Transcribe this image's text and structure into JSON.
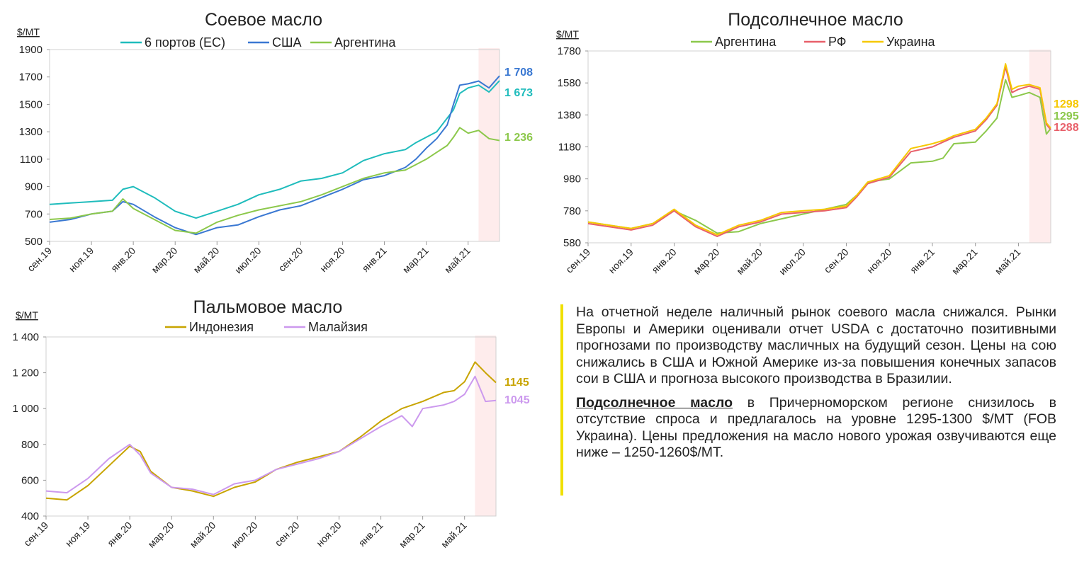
{
  "charts": [
    {
      "id": "soy",
      "type": "line",
      "title": "Соевое масло",
      "unit": "$/MT",
      "ylim": [
        500,
        1900
      ],
      "yticks": [
        500,
        700,
        900,
        1100,
        1300,
        1500,
        1700,
        1900
      ],
      "ytick_labels": [
        "500",
        "700",
        "900",
        "1100",
        "1300",
        "1500",
        "1700",
        "1900"
      ],
      "xlim": [
        0,
        21.5
      ],
      "xtick_labels": [
        "сен.19",
        "ноя.19",
        "янв.20",
        "мар.20",
        "май.20",
        "июл.20",
        "сен.20",
        "ноя.20",
        "янв.21",
        "мар.21",
        "май.21"
      ],
      "highlight_range": [
        20.5,
        21.5
      ],
      "series": [
        {
          "name": "6 портов (ЕС)",
          "color": "#1fbcbc",
          "end_label": "1 673",
          "x": [
            0,
            1,
            2,
            3,
            3.5,
            4,
            5,
            6,
            7,
            8,
            9,
            10,
            11,
            12,
            13,
            14,
            15,
            16,
            17,
            17.5,
            18,
            18.5,
            19,
            19.3,
            19.6,
            20,
            20.5,
            21,
            21.5
          ],
          "y": [
            770,
            780,
            790,
            800,
            880,
            900,
            820,
            720,
            670,
            720,
            770,
            840,
            880,
            940,
            960,
            1000,
            1090,
            1140,
            1170,
            1220,
            1260,
            1300,
            1400,
            1460,
            1580,
            1620,
            1640,
            1590,
            1673
          ]
        },
        {
          "name": "США",
          "color": "#3a78d2",
          "end_label": "1 708",
          "x": [
            0,
            1,
            2,
            3,
            3.5,
            4,
            5,
            6,
            7,
            8,
            9,
            10,
            11,
            12,
            13,
            14,
            15,
            16,
            17,
            17.5,
            18,
            18.5,
            19,
            19.3,
            19.6,
            20,
            20.5,
            21,
            21.5
          ],
          "y": [
            640,
            660,
            700,
            720,
            790,
            770,
            680,
            600,
            550,
            600,
            620,
            680,
            730,
            760,
            820,
            880,
            950,
            980,
            1040,
            1100,
            1180,
            1250,
            1350,
            1500,
            1640,
            1650,
            1670,
            1620,
            1708
          ]
        },
        {
          "name": "Аргентина",
          "color": "#8cc84b",
          "end_label": "1 236",
          "x": [
            0,
            1,
            2,
            3,
            3.5,
            4,
            5,
            6,
            7,
            8,
            9,
            10,
            11,
            12,
            13,
            14,
            15,
            16,
            17,
            17.5,
            18,
            18.5,
            19,
            19.3,
            19.6,
            20,
            20.5,
            21,
            21.5
          ],
          "y": [
            660,
            670,
            700,
            720,
            810,
            740,
            660,
            580,
            560,
            640,
            690,
            730,
            760,
            790,
            840,
            900,
            960,
            1000,
            1020,
            1060,
            1100,
            1150,
            1200,
            1260,
            1330,
            1290,
            1310,
            1250,
            1236
          ]
        }
      ]
    },
    {
      "id": "sun",
      "type": "line",
      "title": "Подсолнечное масло",
      "unit": "$/MT",
      "ylim": [
        580,
        1780
      ],
      "yticks": [
        580,
        780,
        980,
        1180,
        1380,
        1580,
        1780
      ],
      "ytick_labels": [
        "580",
        "780",
        "980",
        "1180",
        "1380",
        "1580",
        "1780"
      ],
      "xlim": [
        0,
        21.5
      ],
      "xtick_labels": [
        "сен.19",
        "ноя.19",
        "янв.20",
        "мар.20",
        "май.20",
        "июл.20",
        "сен.20",
        "ноя.20",
        "янв.21",
        "мар.21",
        "май.21"
      ],
      "highlight_range": [
        20.5,
        21.5
      ],
      "series": [
        {
          "name": "Аргентина",
          "color": "#8cc84b",
          "end_label": "1295",
          "x": [
            0,
            1,
            2,
            3,
            4,
            5,
            6,
            7,
            8,
            9,
            10,
            11,
            12,
            12.5,
            13,
            14,
            15,
            16,
            16.5,
            17,
            18,
            18.5,
            19,
            19.4,
            19.7,
            20,
            20.5,
            21,
            21.3,
            21.5
          ],
          "y": [
            710,
            690,
            670,
            700,
            780,
            720,
            640,
            650,
            700,
            730,
            760,
            790,
            820,
            880,
            960,
            980,
            1080,
            1090,
            1110,
            1200,
            1210,
            1280,
            1360,
            1600,
            1490,
            1500,
            1520,
            1490,
            1260,
            1295
          ]
        },
        {
          "name": "РФ",
          "color": "#e8606a",
          "end_label": "1288",
          "x": [
            0,
            1,
            2,
            3,
            4,
            5,
            6,
            7,
            8,
            9,
            10,
            11,
            12,
            12.5,
            13,
            14,
            15,
            16,
            16.5,
            17,
            18,
            18.5,
            19,
            19.4,
            19.7,
            20,
            20.5,
            21,
            21.3,
            21.5
          ],
          "y": [
            700,
            680,
            660,
            690,
            780,
            680,
            620,
            680,
            710,
            760,
            770,
            780,
            800,
            870,
            950,
            990,
            1150,
            1180,
            1210,
            1240,
            1280,
            1350,
            1440,
            1680,
            1520,
            1540,
            1560,
            1540,
            1320,
            1288
          ]
        },
        {
          "name": "Украина",
          "color": "#f6c800",
          "end_label": "1298",
          "x": [
            0,
            1,
            2,
            3,
            4,
            5,
            6,
            7,
            8,
            9,
            10,
            11,
            12,
            12.5,
            13,
            14,
            15,
            16,
            16.5,
            17,
            18,
            18.5,
            19,
            19.4,
            19.7,
            20,
            20.5,
            21,
            21.3,
            21.5
          ],
          "y": [
            710,
            690,
            670,
            700,
            790,
            690,
            630,
            690,
            720,
            770,
            780,
            790,
            810,
            880,
            960,
            1000,
            1170,
            1200,
            1220,
            1250,
            1290,
            1360,
            1450,
            1700,
            1540,
            1560,
            1570,
            1550,
            1330,
            1298
          ]
        }
      ]
    },
    {
      "id": "palm",
      "type": "line",
      "title": "Пальмовое масло",
      "unit": "$/MT",
      "ylim": [
        400,
        1400
      ],
      "yticks": [
        400,
        600,
        800,
        1000,
        1200,
        1400
      ],
      "ytick_labels": [
        "400",
        "600",
        "800",
        "1 000",
        "1 200",
        "1 400"
      ],
      "xlim": [
        0,
        21.5
      ],
      "xtick_labels": [
        "сен.19",
        "ноя.19",
        "янв.20",
        "мар.20",
        "май.20",
        "июл.20",
        "сен.20",
        "ноя.20",
        "янв.21",
        "мар.21",
        "май.21"
      ],
      "highlight_range": [
        20.5,
        21.5
      ],
      "series": [
        {
          "name": "Индонезия",
          "color": "#c8a400",
          "end_label": "1145",
          "x": [
            0,
            1,
            2,
            3,
            4,
            4.5,
            5,
            6,
            7,
            8,
            9,
            10,
            11,
            12,
            13,
            14,
            15,
            16,
            17,
            18,
            19,
            19.5,
            20,
            20.5,
            21,
            21.5
          ],
          "y": [
            500,
            490,
            570,
            680,
            790,
            760,
            650,
            560,
            540,
            510,
            560,
            590,
            660,
            700,
            730,
            760,
            840,
            930,
            1000,
            1040,
            1090,
            1100,
            1150,
            1260,
            1200,
            1145
          ]
        },
        {
          "name": "Малайзия",
          "color": "#cc99ee",
          "end_label": "1045",
          "x": [
            0,
            1,
            2,
            3,
            4,
            4.5,
            5,
            6,
            7,
            8,
            9,
            10,
            11,
            12,
            13,
            14,
            15,
            16,
            17,
            17.5,
            18,
            19,
            19.5,
            20,
            20.5,
            21,
            21.5
          ],
          "y": [
            540,
            530,
            610,
            720,
            800,
            740,
            640,
            560,
            550,
            520,
            580,
            600,
            660,
            690,
            720,
            760,
            830,
            900,
            960,
            900,
            1000,
            1020,
            1040,
            1080,
            1180,
            1040,
            1045
          ]
        }
      ]
    }
  ],
  "commentary": {
    "p1": "На отчетной неделе наличный рынок соевого масла снижался. Рынки Европы и Америки оценивали отчет USDA с достаточно позитивными прогнозами по производству масличных на будущий сезон. Цены на сою снижались в США и Южной Америке из-за повышения конечных запасов сои в США и прогноза высокого производства в Бразилии.",
    "p2_lead": "Подсолнечное масло",
    "p2_rest": " в Причерноморском регионе снизилось в отсутствие спроса и предлагалось на уровне 1295-1300 $/MT (FOB Украина). Цены предложения на масло нового урожая озвучиваются еще ниже – 1250-1260$/MT."
  }
}
